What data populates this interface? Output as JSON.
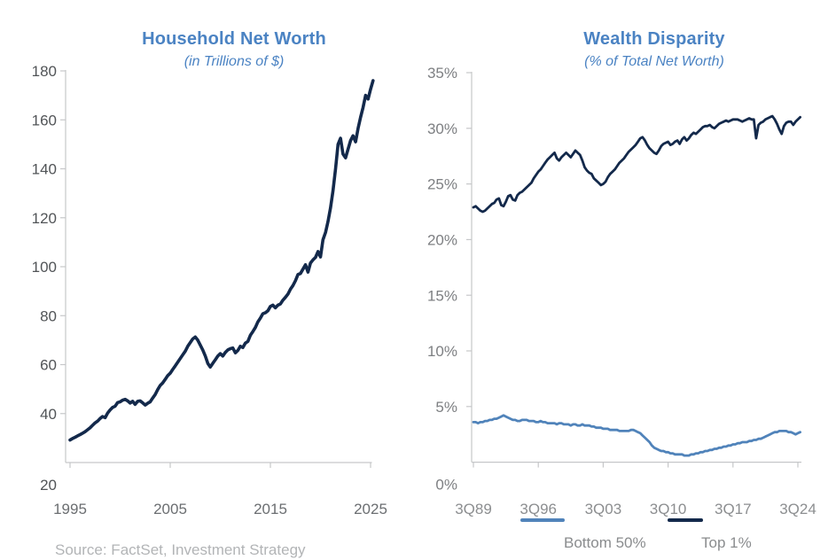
{
  "page": {
    "background": "#ffffff"
  },
  "source_note": "Source: FactSet, Investment Strategy",
  "colors": {
    "title_blue": "#4b83c3",
    "navy": "#13294b",
    "light_blue": "#5083ba",
    "axis_gray": "#c6c7c9",
    "left_y_label": "#515457",
    "left_x_label": "#6b6e71",
    "right_y_label": "#7d7f82",
    "right_x_label": "#8c8e90",
    "legend_label": "#8a8c8e",
    "source_gray": "#b2b4b6"
  },
  "legend": {
    "items": [
      {
        "label": "Bottom 50%",
        "color": "#5083ba"
      },
      {
        "label": "Top 1%",
        "color": "#13294b"
      }
    ]
  },
  "chart_data": [
    {
      "type": "line",
      "title": "Household Net Worth",
      "subtitle": "(in Trillions of $)",
      "units": "trillions of dollars",
      "grid": false,
      "legend_position": "none",
      "x_start": 1995.0,
      "x_step": 0.25,
      "xlim": [
        1995,
        2025.5
      ],
      "ylim": [
        20,
        180
      ],
      "x_tick_values": [
        1995,
        2005,
        2015,
        2025
      ],
      "x_tick_labels": [
        "1995",
        "2005",
        "2015",
        "2025"
      ],
      "y_tick_values": [
        180,
        160,
        140,
        120,
        100,
        80,
        60,
        40,
        20
      ],
      "y_tick_labels": [
        "180",
        "160",
        "140",
        "120",
        "100",
        "80",
        "60",
        "40",
        "20"
      ],
      "series": [
        {
          "name": "Household Net Worth",
          "color": "#13294b",
          "values": [
            29.2,
            29.8,
            30.3,
            30.9,
            31.4,
            32.0,
            32.6,
            33.4,
            34.2,
            35.2,
            36.2,
            36.9,
            38.0,
            38.8,
            38.3,
            40.2,
            41.5,
            42.5,
            43.0,
            44.5,
            44.8,
            45.5,
            45.8,
            45.2,
            44.3,
            45.0,
            43.8,
            45.0,
            45.2,
            44.4,
            43.5,
            44.2,
            44.8,
            46.3,
            47.8,
            49.8,
            51.5,
            52.5,
            54.0,
            55.5,
            56.5,
            58.0,
            59.5,
            61.0,
            62.5,
            64.0,
            65.5,
            67.5,
            69.0,
            70.5,
            71.3,
            70.0,
            68.0,
            66.0,
            63.5,
            60.5,
            59.0,
            60.5,
            62.0,
            63.5,
            64.5,
            63.5,
            65.0,
            66.0,
            66.5,
            66.8,
            64.8,
            65.8,
            67.5,
            67.0,
            68.8,
            69.5,
            72.0,
            73.5,
            75.2,
            77.5,
            79.0,
            80.8,
            81.2,
            82.0,
            83.8,
            84.3,
            83.2,
            84.3,
            84.8,
            86.3,
            87.5,
            88.8,
            90.8,
            92.3,
            94.3,
            96.8,
            97.2,
            99.0,
            100.8,
            97.8,
            101.5,
            102.8,
            103.8,
            106.2,
            104.0,
            111.0,
            114.0,
            118.5,
            124.0,
            131.0,
            140.0,
            150.0,
            152.5,
            146.0,
            144.5,
            148.0,
            151.5,
            153.5,
            151.0,
            156.5,
            161.0,
            165.0,
            170.0,
            168.5,
            172.5,
            176.0
          ]
        }
      ]
    },
    {
      "type": "line",
      "title": "Wealth Disparity",
      "subtitle": "(% of Total Net Worth)",
      "units": "percent of total net worth",
      "grid": false,
      "legend_position": "bottom",
      "x_start": 1989.75,
      "x_step": 0.25,
      "xlim": [
        1989.75,
        2025.1
      ],
      "ylim": [
        0,
        35
      ],
      "x_tick_values": [
        1989.75,
        1996.75,
        2003.75,
        2010.75,
        2017.75,
        2024.75
      ],
      "x_tick_labels": [
        "3Q89",
        "3Q96",
        "3Q03",
        "3Q10",
        "3Q17",
        "3Q24"
      ],
      "y_tick_values": [
        35,
        30,
        25,
        20,
        15,
        10,
        5,
        0
      ],
      "y_tick_labels": [
        "35%",
        "30%",
        "25%",
        "20%",
        "15%",
        "10%",
        "5%",
        "0%"
      ],
      "series": [
        {
          "name": "Top 1%",
          "color": "#13294b",
          "values": [
            22.9,
            23.0,
            22.8,
            22.6,
            22.5,
            22.6,
            22.8,
            23.0,
            23.2,
            23.3,
            23.6,
            23.7,
            23.1,
            23.0,
            23.4,
            23.9,
            24.0,
            23.6,
            23.5,
            24.0,
            24.2,
            24.3,
            24.5,
            24.7,
            24.9,
            25.1,
            25.5,
            25.8,
            26.1,
            26.3,
            26.6,
            26.9,
            27.2,
            27.4,
            27.6,
            27.8,
            27.3,
            27.1,
            27.4,
            27.6,
            27.8,
            27.6,
            27.4,
            27.7,
            28.0,
            27.8,
            27.6,
            27.1,
            26.5,
            26.2,
            26.0,
            25.9,
            25.5,
            25.3,
            25.1,
            24.9,
            25.0,
            25.2,
            25.6,
            25.9,
            26.1,
            26.3,
            26.6,
            26.9,
            27.1,
            27.3,
            27.6,
            27.9,
            28.1,
            28.3,
            28.5,
            28.8,
            29.1,
            29.2,
            28.9,
            28.5,
            28.2,
            28.0,
            27.8,
            27.7,
            28.0,
            28.4,
            28.6,
            28.7,
            28.8,
            28.5,
            28.6,
            28.8,
            28.9,
            28.6,
            29.0,
            29.2,
            28.9,
            29.1,
            29.4,
            29.6,
            29.5,
            29.7,
            29.9,
            30.1,
            30.2,
            30.2,
            30.3,
            30.1,
            30.0,
            30.2,
            30.4,
            30.5,
            30.6,
            30.7,
            30.6,
            30.7,
            30.8,
            30.8,
            30.8,
            30.7,
            30.6,
            30.7,
            30.8,
            30.9,
            30.8,
            30.8,
            29.1,
            30.3,
            30.5,
            30.6,
            30.8,
            30.9,
            31.0,
            31.1,
            30.8,
            30.4,
            29.9,
            29.5,
            30.2,
            30.5,
            30.6,
            30.6,
            30.3,
            30.6,
            30.8,
            31.0
          ]
        },
        {
          "name": "Bottom 50%",
          "color": "#5083ba",
          "values": [
            3.6,
            3.6,
            3.5,
            3.6,
            3.6,
            3.7,
            3.7,
            3.8,
            3.8,
            3.9,
            3.9,
            4.0,
            4.1,
            4.2,
            4.1,
            4.0,
            3.9,
            3.8,
            3.8,
            3.7,
            3.7,
            3.8,
            3.8,
            3.8,
            3.7,
            3.7,
            3.7,
            3.6,
            3.6,
            3.7,
            3.6,
            3.6,
            3.5,
            3.5,
            3.5,
            3.5,
            3.4,
            3.5,
            3.5,
            3.4,
            3.4,
            3.4,
            3.3,
            3.4,
            3.4,
            3.3,
            3.3,
            3.4,
            3.3,
            3.3,
            3.3,
            3.2,
            3.2,
            3.1,
            3.1,
            3.1,
            3.0,
            3.0,
            3.0,
            2.9,
            2.9,
            2.9,
            2.9,
            2.8,
            2.8,
            2.8,
            2.8,
            2.8,
            2.9,
            2.9,
            2.8,
            2.7,
            2.6,
            2.4,
            2.2,
            2.0,
            1.8,
            1.5,
            1.3,
            1.2,
            1.1,
            1.0,
            1.0,
            0.9,
            0.9,
            0.8,
            0.8,
            0.7,
            0.7,
            0.7,
            0.7,
            0.6,
            0.6,
            0.6,
            0.7,
            0.7,
            0.8,
            0.8,
            0.9,
            0.9,
            1.0,
            1.0,
            1.1,
            1.1,
            1.2,
            1.2,
            1.3,
            1.3,
            1.4,
            1.4,
            1.5,
            1.5,
            1.6,
            1.6,
            1.7,
            1.7,
            1.8,
            1.8,
            1.8,
            1.9,
            1.9,
            2.0,
            2.0,
            2.1,
            2.1,
            2.2,
            2.3,
            2.4,
            2.5,
            2.6,
            2.7,
            2.7,
            2.8,
            2.8,
            2.8,
            2.8,
            2.7,
            2.7,
            2.6,
            2.5,
            2.6,
            2.7
          ]
        }
      ]
    }
  ]
}
